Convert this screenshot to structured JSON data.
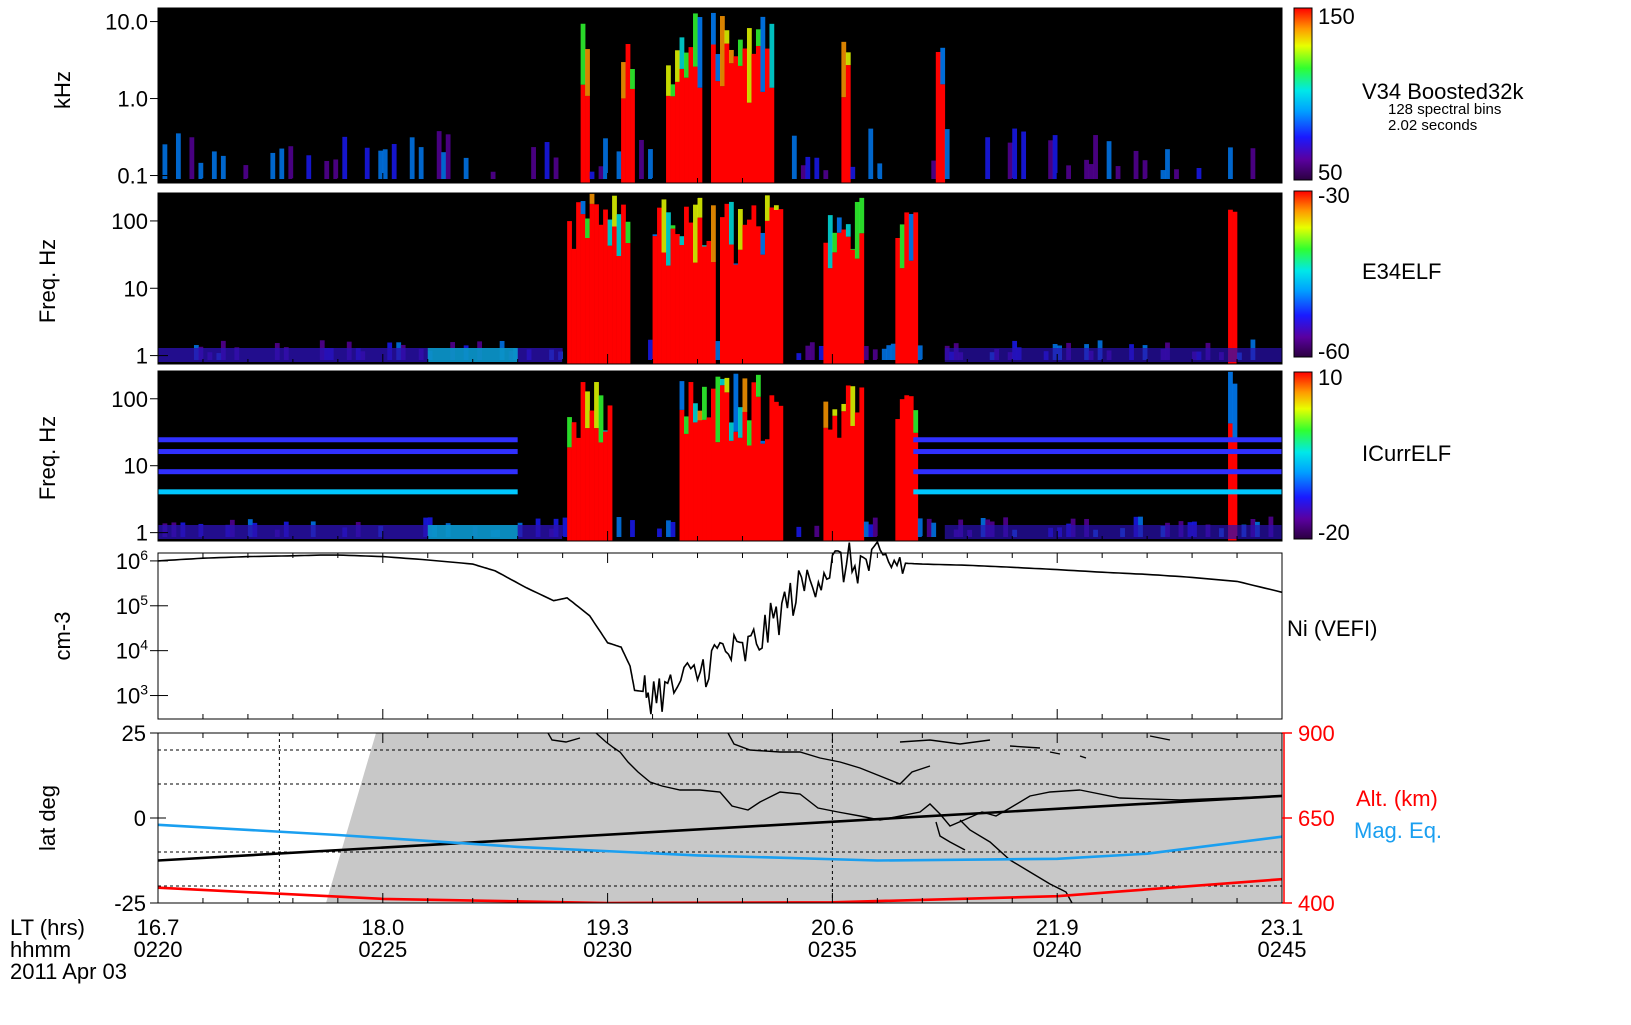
{
  "figure": {
    "footer": {
      "lt_label": "LT (hrs)",
      "hhmm_label": "hhmm",
      "date_label": "2011 Apr 03"
    }
  },
  "chart_data": [
    {
      "type": "heatmap",
      "panel": "V34 Boosted32k",
      "ylabel": "kHz",
      "yscale": "log",
      "ylim": [
        0.08,
        15
      ],
      "y_ticks": [
        "10.0",
        "1.0",
        "0.1"
      ],
      "colorbar": {
        "min_label": "50",
        "max_label": "150",
        "min": 50,
        "max": 150
      },
      "title": "V34 Boosted32k",
      "notes": [
        "128 spectral bins",
        "2.02 seconds"
      ],
      "strong_intervals_min": [
        [
          9.3,
          9.5
        ],
        [
          10.2,
          10.5
        ],
        [
          11.2,
          12.0
        ],
        [
          12.2,
          13.6
        ],
        [
          15.1,
          15.3
        ],
        [
          17.2,
          17.4
        ]
      ]
    },
    {
      "type": "heatmap",
      "panel": "E34ELF",
      "ylabel": "Freq. Hz",
      "yscale": "log",
      "ylim": [
        0.75,
        260
      ],
      "y_ticks": [
        "100",
        "10",
        "1"
      ],
      "colorbar": {
        "min_label": "-60",
        "max_label": "-30",
        "min": -60,
        "max": -30
      },
      "title": "E34ELF",
      "strong_intervals_min": [
        [
          9.0,
          10.4
        ],
        [
          10.9,
          12.3
        ],
        [
          12.4,
          13.8
        ],
        [
          14.7,
          15.6
        ],
        [
          16.3,
          16.8
        ],
        [
          23.8,
          24.0
        ]
      ]
    },
    {
      "type": "heatmap",
      "panel": "ICurrELF",
      "ylabel": "Freq. Hz",
      "yscale": "log",
      "ylim": [
        0.75,
        260
      ],
      "y_ticks": [
        "100",
        "10",
        "1"
      ],
      "colorbar": {
        "min_label": "-20",
        "max_label": "10",
        "min": -20,
        "max": 10
      },
      "title": "ICurrELF",
      "line_frequencies_hz": [
        4,
        8,
        16,
        24
      ],
      "strong_intervals_min": [
        [
          9.0,
          10.0
        ],
        [
          11.5,
          13.8
        ],
        [
          14.7,
          15.6
        ],
        [
          16.3,
          16.8
        ],
        [
          23.8,
          24.0
        ]
      ]
    },
    {
      "type": "line",
      "panel": "Ni (VEFI)",
      "ylabel": "cm-3",
      "yscale": "log",
      "ylim": [
        300,
        1500000
      ],
      "y_ticks": [
        "10^6",
        "10^5",
        "10^4",
        "10^3"
      ],
      "title": "Ni (VEFI)",
      "x_min": [
        0,
        1,
        2,
        3,
        3.7,
        4,
        5,
        6,
        7,
        7.5,
        8.2,
        8.8,
        9.1,
        9.6,
        10.0,
        10.3,
        10.5,
        10.6,
        10.9,
        11.4,
        12.0,
        12.5,
        13.0,
        13.5,
        14.0,
        14.5,
        15.0,
        15.5,
        16.0,
        16.5,
        17.0,
        18.0,
        19.0,
        20.0,
        21.0,
        22.0,
        23.0,
        24.0,
        25.0
      ],
      "y": [
        1000000,
        1150000,
        1250000,
        1300000,
        1350000,
        1350000,
        1250000,
        1050000,
        850000,
        600000,
        250000,
        130000,
        150000,
        60000,
        15000,
        12000,
        4500,
        1300,
        1200,
        1300,
        3000,
        10000,
        8000,
        25000,
        120000,
        400000,
        800000,
        850000,
        850000,
        900000,
        850000,
        800000,
        720000,
        640000,
        560000,
        500000,
        430000,
        350000,
        200000
      ]
    },
    {
      "type": "line",
      "panel": "orbit",
      "ylabel": "lat deg",
      "ylim": [
        -25,
        25
      ],
      "y_ticks": [
        "25",
        "0",
        "-25"
      ],
      "right_axis": {
        "label": "Alt. (km)",
        "ticks": [
          "900",
          "650",
          "400"
        ],
        "ylim": [
          400,
          900
        ],
        "color": "#ff0000"
      },
      "series": [
        {
          "name": "lat",
          "color": "#000000",
          "x_min": [
            0,
            25
          ],
          "y": [
            -12.5,
            6.5
          ]
        },
        {
          "name": "Mag. Eq.",
          "color": "#1a9ff0",
          "x_min": [
            0,
            4,
            8,
            12,
            16,
            20,
            22,
            25
          ],
          "y": [
            -2,
            -5,
            -8.5,
            -11,
            -12.5,
            -12,
            -10.5,
            -5.5
          ]
        },
        {
          "name": "Alt. (km)",
          "color": "#ff0000",
          "x_min": [
            0,
            5,
            10,
            15,
            20,
            25
          ],
          "y_km": [
            445,
            412,
            400,
            402,
            420,
            470
          ]
        }
      ],
      "legend": [
        "Alt. (km)",
        "Mag. Eq."
      ]
    }
  ],
  "x_axis": {
    "lt_ticks": [
      "16.7",
      "18.0",
      "19.3",
      "20.6",
      "21.9",
      "23.1"
    ],
    "hhmm_ticks": [
      "0220",
      "0225",
      "0230",
      "0235",
      "0240",
      "0245"
    ],
    "xlim_min": [
      0,
      25
    ]
  }
}
